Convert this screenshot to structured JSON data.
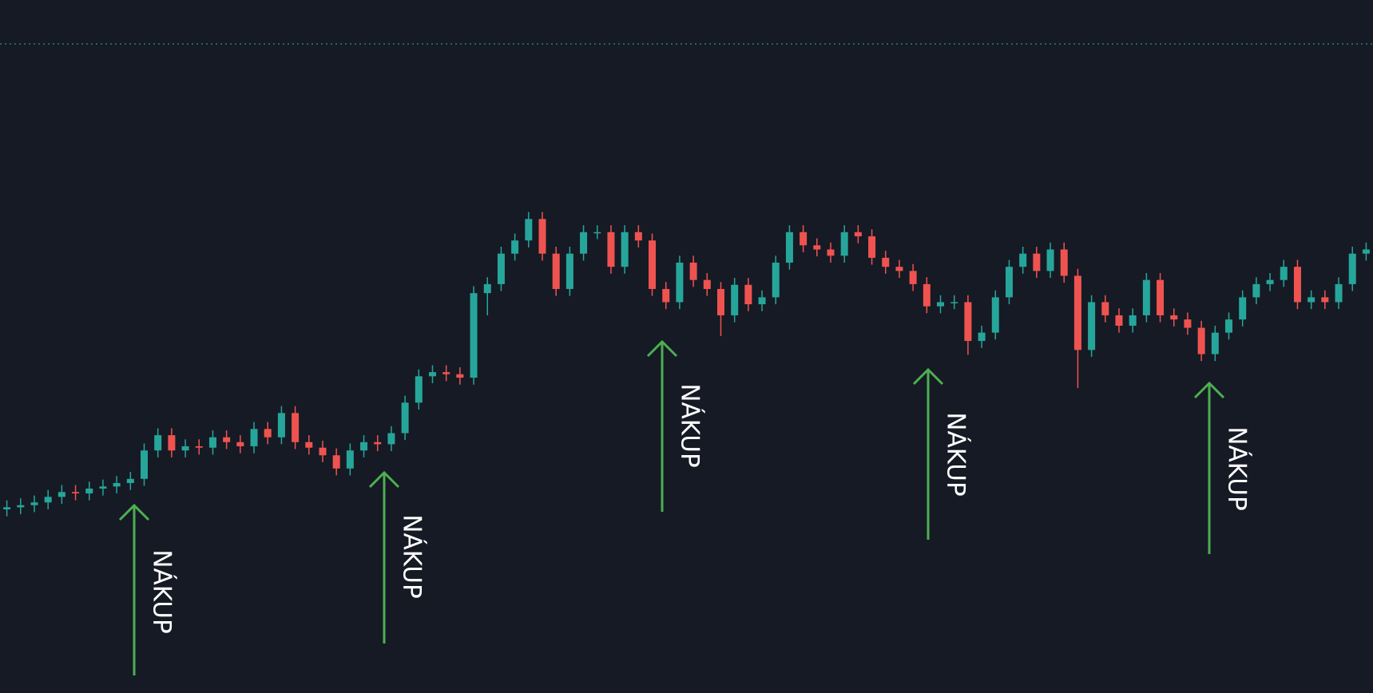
{
  "chart_data": {
    "type": "candlestick",
    "ylim": [
      0,
      100
    ],
    "up_color": "#26a69a",
    "down_color": "#ef5350",
    "annotation_color": "#4caf50",
    "open": [
      26.5,
      26.8,
      27.1,
      27.5,
      28.3,
      29.0,
      28.8,
      29.5,
      29.8,
      30.3,
      30.9,
      35.0,
      37.2,
      35.0,
      35.6,
      35.4,
      36.9,
      36.2,
      35.6,
      38.1,
      36.9,
      40.4,
      36.2,
      35.4,
      34.3,
      32.4,
      35.0,
      36.2,
      35.9,
      37.5,
      41.9,
      45.7,
      46.3,
      46.0,
      45.5,
      57.7,
      59.0,
      63.4,
      65.3,
      68.4,
      63.4,
      58.3,
      63.4,
      66.5,
      66.5,
      61.5,
      66.5,
      65.3,
      58.3,
      56.4,
      62.1,
      59.6,
      58.3,
      54.5,
      58.9,
      56.1,
      57.1,
      62.1,
      66.5,
      64.6,
      64.0,
      63.1,
      66.5,
      65.9,
      62.8,
      61.5,
      60.9,
      59.0,
      55.8,
      56.4,
      56.4,
      50.8,
      52.0,
      57.1,
      61.5,
      63.4,
      60.9,
      64.0,
      60.2,
      49.5,
      56.4,
      54.5,
      53.0,
      54.5,
      59.6,
      54.5,
      53.9,
      52.7,
      48.9,
      52.0,
      53.9,
      57.1,
      59.0,
      59.6,
      61.5,
      56.4,
      57.1,
      56.4,
      59.0,
      63.4
    ],
    "high": [
      27.8,
      28.1,
      28.5,
      29.3,
      30.0,
      30.0,
      30.5,
      30.8,
      31.3,
      31.9,
      36.0,
      38.2,
      38.2,
      36.6,
      36.6,
      37.9,
      37.9,
      37.2,
      39.1,
      39.1,
      41.4,
      41.4,
      37.2,
      36.4,
      35.3,
      36.0,
      37.2,
      37.2,
      38.5,
      42.9,
      46.7,
      47.3,
      47.3,
      47.0,
      58.7,
      60.0,
      64.4,
      66.3,
      69.4,
      69.4,
      64.4,
      64.4,
      67.5,
      67.5,
      67.5,
      67.5,
      67.5,
      66.3,
      59.3,
      63.1,
      63.1,
      60.6,
      59.3,
      59.9,
      59.9,
      58.1,
      63.1,
      67.5,
      67.5,
      65.6,
      65.0,
      67.5,
      67.5,
      66.9,
      63.8,
      62.5,
      61.9,
      60.0,
      57.4,
      57.4,
      57.4,
      53.0,
      58.1,
      62.5,
      64.4,
      64.4,
      65.0,
      65.0,
      61.2,
      57.4,
      57.4,
      55.5,
      55.5,
      60.6,
      60.6,
      55.5,
      54.9,
      53.7,
      53.0,
      54.9,
      58.1,
      60.0,
      60.6,
      62.5,
      62.5,
      58.1,
      58.1,
      60.0,
      64.4,
      65.0
    ],
    "low": [
      25.5,
      25.8,
      26.1,
      26.5,
      27.3,
      27.8,
      27.8,
      28.5,
      28.8,
      29.3,
      29.9,
      34.0,
      34.0,
      34.0,
      34.4,
      34.4,
      35.2,
      34.6,
      34.6,
      35.9,
      35.9,
      35.2,
      34.4,
      33.3,
      31.4,
      31.4,
      34.0,
      34.9,
      34.9,
      36.5,
      40.9,
      44.7,
      45.0,
      44.5,
      44.5,
      54.5,
      58.0,
      62.4,
      64.3,
      62.4,
      57.3,
      57.3,
      62.4,
      65.5,
      60.5,
      60.5,
      64.3,
      57.3,
      55.4,
      55.4,
      58.6,
      57.3,
      51.5,
      53.5,
      55.1,
      55.1,
      56.1,
      61.1,
      63.6,
      63.0,
      62.1,
      62.1,
      64.9,
      61.8,
      60.5,
      59.9,
      58.0,
      54.8,
      54.8,
      55.4,
      48.8,
      49.8,
      51.0,
      56.1,
      60.5,
      59.9,
      59.9,
      59.2,
      44.0,
      48.5,
      53.5,
      52.0,
      52.0,
      53.5,
      53.5,
      52.9,
      51.7,
      47.9,
      47.9,
      51.0,
      52.9,
      56.1,
      58.0,
      58.6,
      55.4,
      55.4,
      55.4,
      55.4,
      58.0,
      62.4
    ],
    "close": [
      26.8,
      27.1,
      27.5,
      28.3,
      29.0,
      28.8,
      29.5,
      29.8,
      30.3,
      30.9,
      35.0,
      37.2,
      35.0,
      35.6,
      35.4,
      36.9,
      36.2,
      35.6,
      38.1,
      36.9,
      40.4,
      36.2,
      35.4,
      34.3,
      32.4,
      35.0,
      36.2,
      35.9,
      37.5,
      41.9,
      45.7,
      46.3,
      46.0,
      45.5,
      57.7,
      59.0,
      63.4,
      65.3,
      68.4,
      63.4,
      58.3,
      63.4,
      66.5,
      66.5,
      61.5,
      66.5,
      65.3,
      58.3,
      56.4,
      62.1,
      59.6,
      58.3,
      54.5,
      58.9,
      56.1,
      57.1,
      62.1,
      66.5,
      64.6,
      64.0,
      63.1,
      66.5,
      65.9,
      62.8,
      61.5,
      60.9,
      59.0,
      55.8,
      56.4,
      56.4,
      50.8,
      52.0,
      57.1,
      61.5,
      63.4,
      60.9,
      64.0,
      60.2,
      49.5,
      56.4,
      54.5,
      53.0,
      54.5,
      59.6,
      54.5,
      53.9,
      52.7,
      48.9,
      52.0,
      53.9,
      57.1,
      59.0,
      59.6,
      61.5,
      56.4,
      57.1,
      56.4,
      59.0,
      63.4,
      64.0
    ],
    "annotations": [
      "NÁKUP",
      "NÁKUP",
      "NÁKUP",
      "NÁKUP",
      "NÁKUP"
    ]
  }
}
